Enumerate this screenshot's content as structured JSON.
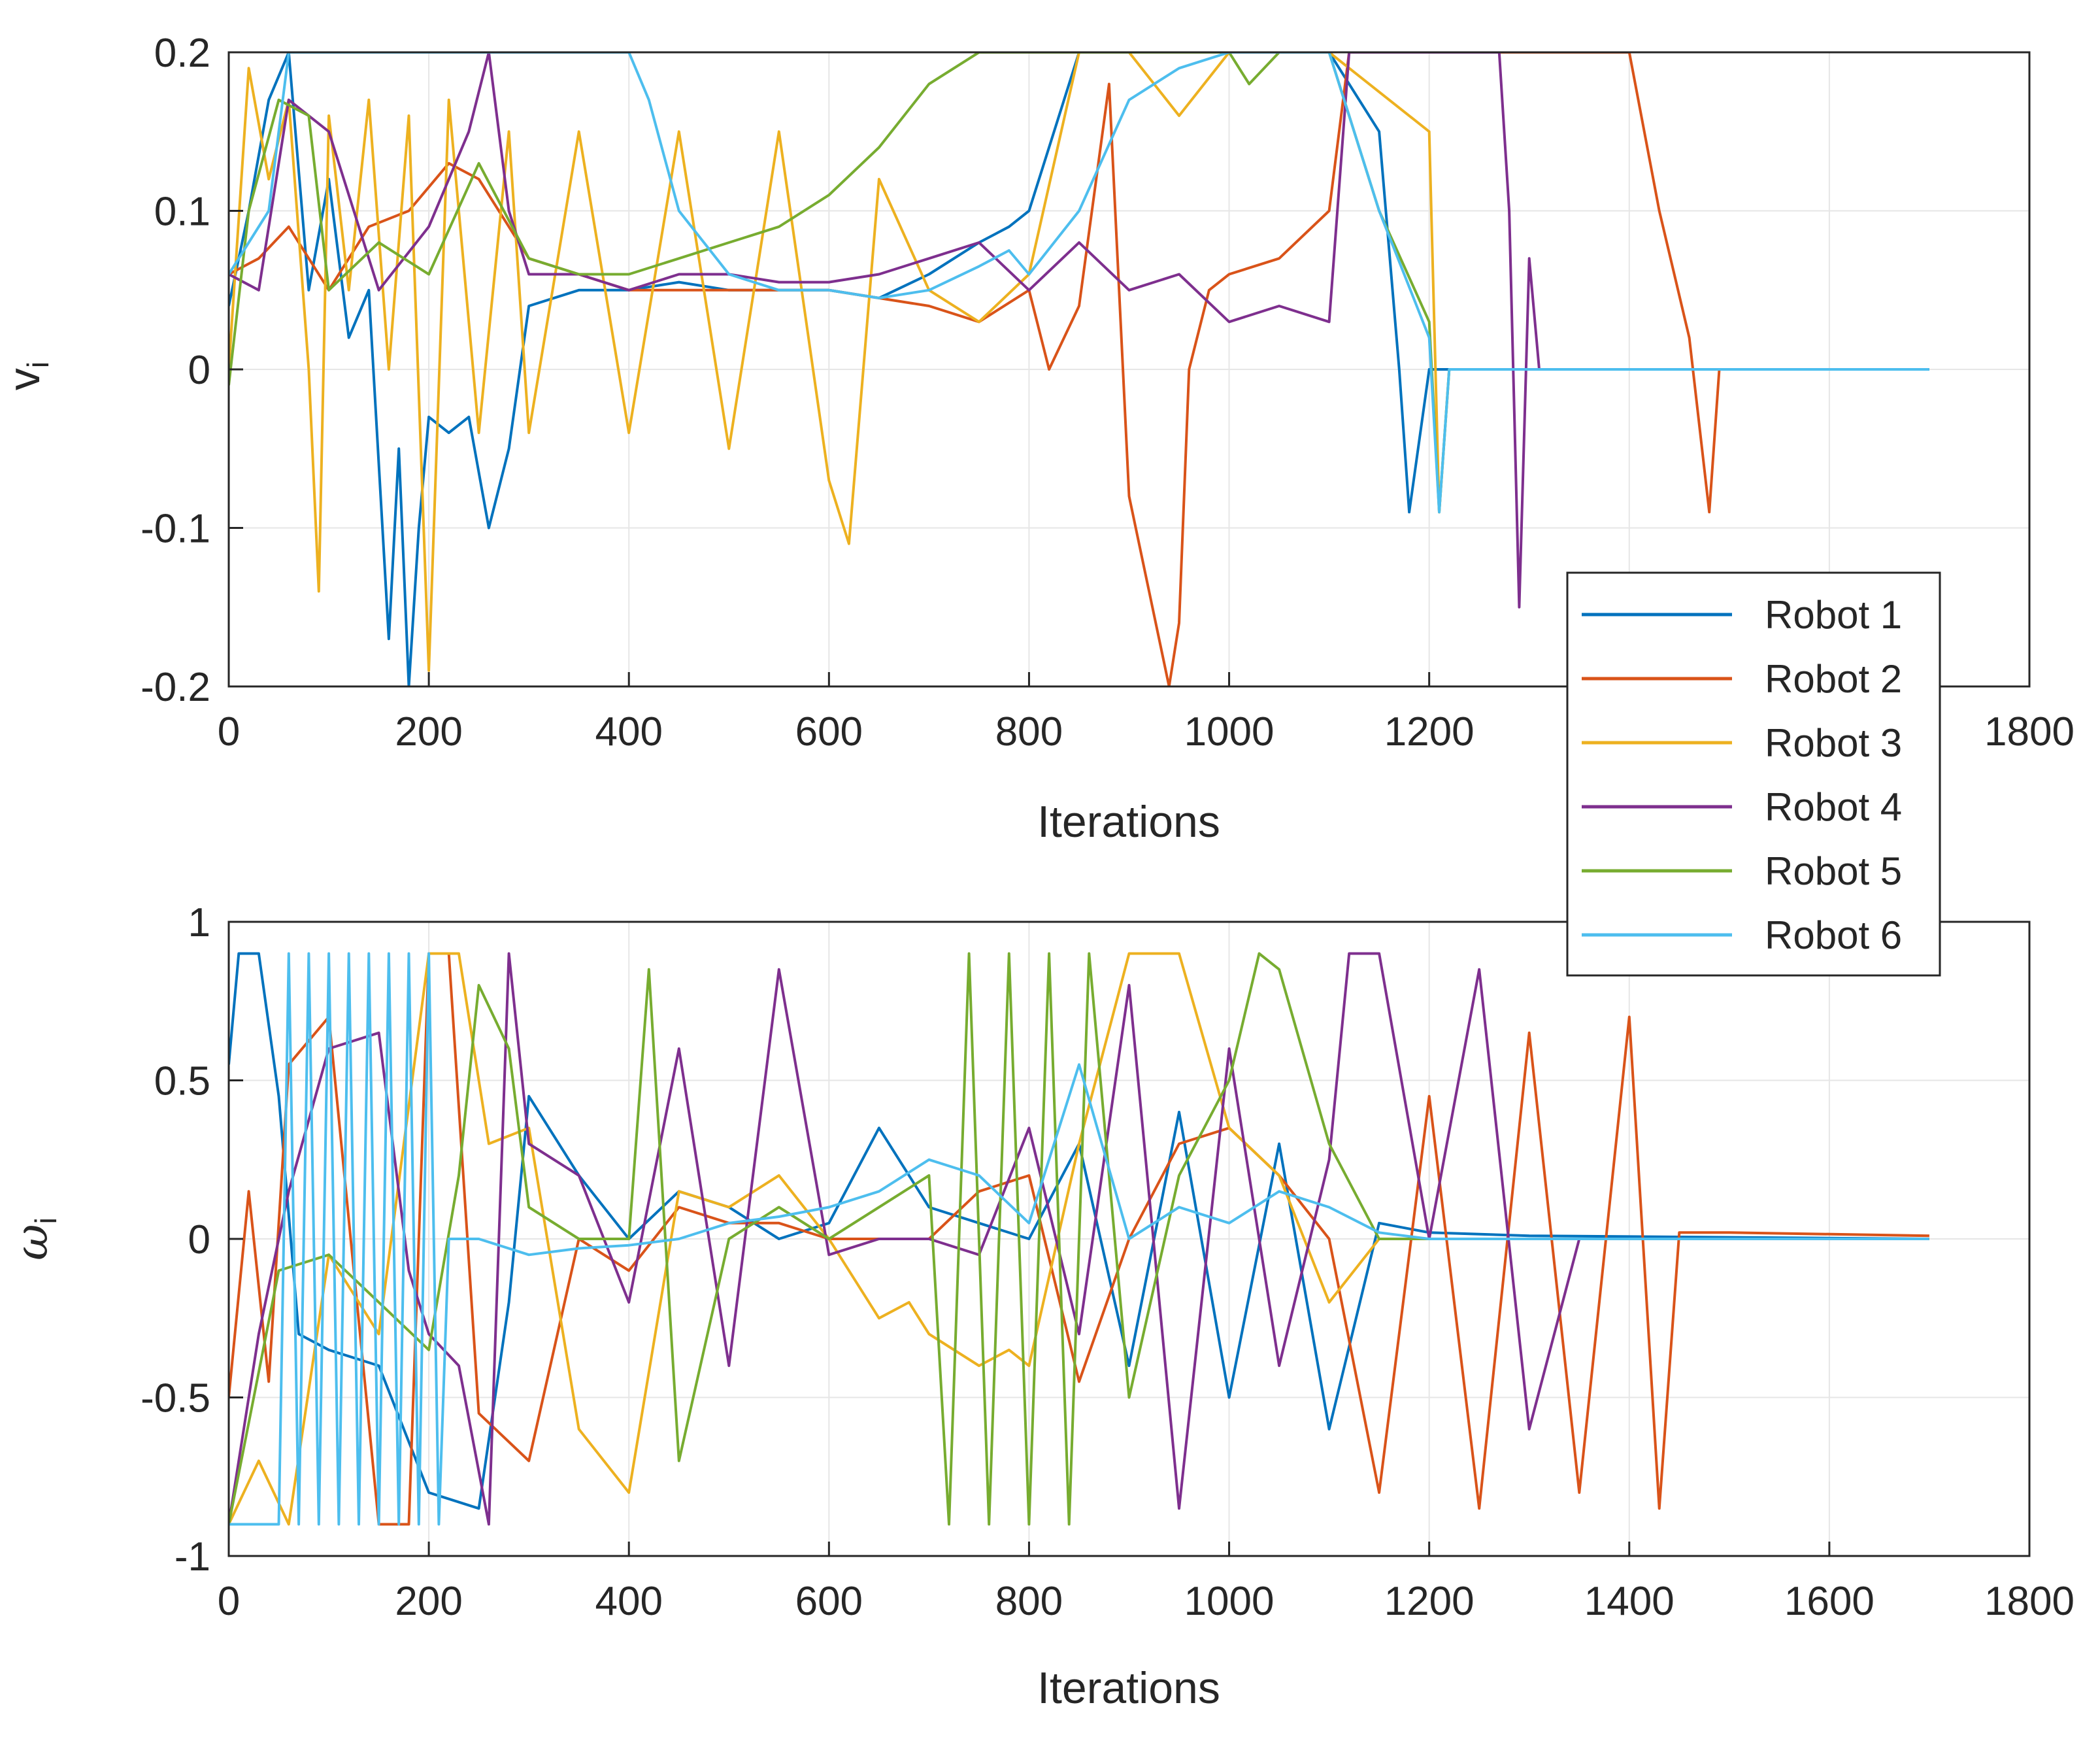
{
  "colors": {
    "series": [
      "#0072BD",
      "#D95319",
      "#EDB120",
      "#7E2F8E",
      "#77AC30",
      "#4DBEEE"
    ],
    "grid": "#e6e6e6",
    "axis": "#262626",
    "background": "#ffffff"
  },
  "legend": {
    "placement": "right, overlapping both panels",
    "entries": [
      "Robot 1",
      "Robot 2",
      "Robot 3",
      "Robot 4",
      "Robot 5",
      "Robot 6"
    ]
  },
  "chart_data": [
    {
      "type": "line",
      "title": "",
      "xlabel": "Iterations",
      "ylabel": "v",
      "ylabel_subscript": "i",
      "xlim": [
        0,
        1800
      ],
      "ylim": [
        -0.2,
        0.2
      ],
      "xticks": [
        0,
        200,
        400,
        600,
        800,
        1000,
        1200,
        1400,
        1600,
        1800
      ],
      "xtick_labels": [
        "0",
        "200",
        "400",
        "600",
        "800",
        "1000",
        "1200",
        "1400",
        "1600",
        "1800"
      ],
      "yticks": [
        -0.2,
        -0.1,
        0,
        0.1,
        0.2
      ],
      "ytick_labels": [
        "-0.2",
        "-0.1",
        "0",
        "0.1",
        "0.2"
      ],
      "grid": true,
      "series": [
        {
          "name": "Robot 1",
          "x": [
            0,
            20,
            40,
            60,
            80,
            100,
            120,
            140,
            160,
            170,
            180,
            190,
            200,
            220,
            240,
            260,
            280,
            300,
            350,
            400,
            450,
            500,
            550,
            600,
            650,
            700,
            750,
            780,
            800,
            850,
            900,
            950,
            1000,
            1050,
            1100,
            1150,
            1170,
            1180,
            1200,
            1400,
            1700
          ],
          "values": [
            0.04,
            0.1,
            0.17,
            0.2,
            0.05,
            0.12,
            0.02,
            0.05,
            -0.17,
            -0.05,
            -0.2,
            -0.1,
            -0.03,
            -0.04,
            -0.03,
            -0.1,
            -0.05,
            0.04,
            0.05,
            0.05,
            0.055,
            0.05,
            0.05,
            0.05,
            0.045,
            0.06,
            0.08,
            0.09,
            0.1,
            0.2,
            0.2,
            0.2,
            0.2,
            0.2,
            0.2,
            0.15,
            0.0,
            -0.09,
            0.0,
            0.0,
            0.0
          ]
        },
        {
          "name": "Robot 2",
          "x": [
            0,
            30,
            60,
            100,
            140,
            180,
            220,
            250,
            300,
            400,
            500,
            600,
            700,
            750,
            800,
            820,
            850,
            880,
            900,
            920,
            940,
            950,
            960,
            980,
            1000,
            1050,
            1100,
            1120,
            1140,
            1200,
            1300,
            1400,
            1430,
            1460,
            1480,
            1490
          ],
          "values": [
            0.06,
            0.07,
            0.09,
            0.05,
            0.09,
            0.1,
            0.13,
            0.12,
            0.07,
            0.05,
            0.05,
            0.05,
            0.04,
            0.03,
            0.05,
            0.0,
            0.04,
            0.18,
            -0.08,
            -0.14,
            -0.2,
            -0.16,
            0.0,
            0.05,
            0.06,
            0.07,
            0.1,
            0.2,
            0.2,
            0.2,
            0.2,
            0.2,
            0.1,
            0.02,
            -0.09,
            0.0
          ]
        },
        {
          "name": "Robot 3",
          "x": [
            0,
            20,
            40,
            60,
            80,
            90,
            100,
            120,
            140,
            160,
            180,
            200,
            220,
            250,
            280,
            300,
            350,
            400,
            450,
            500,
            550,
            600,
            620,
            650,
            700,
            750,
            800,
            850,
            900,
            950,
            1000,
            1100,
            1200,
            1210,
            1220
          ],
          "values": [
            0.0,
            0.19,
            0.12,
            0.17,
            0.0,
            -0.14,
            0.16,
            0.05,
            0.17,
            0.0,
            0.16,
            -0.19,
            0.17,
            -0.04,
            0.15,
            -0.04,
            0.15,
            -0.04,
            0.15,
            -0.05,
            0.15,
            -0.07,
            -0.11,
            0.12,
            0.05,
            0.03,
            0.06,
            0.2,
            0.2,
            0.16,
            0.2,
            0.2,
            0.15,
            -0.09,
            0.0
          ]
        },
        {
          "name": "Robot 4",
          "x": [
            0,
            30,
            60,
            100,
            150,
            200,
            240,
            260,
            280,
            300,
            350,
            400,
            450,
            500,
            550,
            600,
            650,
            700,
            750,
            800,
            850,
            900,
            950,
            1000,
            1050,
            1100,
            1120,
            1150,
            1200,
            1250,
            1270,
            1280,
            1290,
            1300,
            1310
          ],
          "values": [
            0.06,
            0.05,
            0.17,
            0.15,
            0.05,
            0.09,
            0.15,
            0.2,
            0.1,
            0.06,
            0.06,
            0.05,
            0.06,
            0.06,
            0.055,
            0.055,
            0.06,
            0.07,
            0.08,
            0.05,
            0.08,
            0.05,
            0.06,
            0.03,
            0.04,
            0.03,
            0.2,
            0.2,
            0.2,
            0.2,
            0.2,
            0.1,
            -0.15,
            0.07,
            0.0
          ]
        },
        {
          "name": "Robot 5",
          "x": [
            0,
            20,
            50,
            80,
            100,
            150,
            200,
            250,
            300,
            350,
            400,
            450,
            500,
            550,
            600,
            650,
            700,
            750,
            800,
            900,
            1000,
            1020,
            1050,
            1100,
            1150,
            1200,
            1210,
            1220
          ],
          "values": [
            -0.01,
            0.1,
            0.17,
            0.16,
            0.05,
            0.08,
            0.06,
            0.13,
            0.07,
            0.06,
            0.06,
            0.07,
            0.08,
            0.09,
            0.11,
            0.14,
            0.18,
            0.2,
            0.2,
            0.2,
            0.2,
            0.18,
            0.2,
            0.2,
            0.1,
            0.03,
            -0.09,
            0.0
          ]
        },
        {
          "name": "Robot 6",
          "x": [
            0,
            40,
            60,
            100,
            200,
            300,
            400,
            420,
            450,
            500,
            550,
            600,
            650,
            700,
            750,
            780,
            800,
            850,
            900,
            950,
            1000,
            1050,
            1100,
            1150,
            1200,
            1210,
            1220,
            1300,
            1400,
            1500,
            1600,
            1700
          ],
          "values": [
            0.06,
            0.1,
            0.2,
            0.2,
            0.2,
            0.2,
            0.2,
            0.17,
            0.1,
            0.06,
            0.05,
            0.05,
            0.045,
            0.05,
            0.065,
            0.075,
            0.06,
            0.1,
            0.17,
            0.19,
            0.2,
            0.2,
            0.2,
            0.1,
            0.02,
            -0.09,
            0.0,
            0.0,
            0.0,
            0.0,
            0.0,
            0.0
          ]
        }
      ]
    },
    {
      "type": "line",
      "title": "",
      "xlabel": "Iterations",
      "ylabel": "ω",
      "ylabel_subscript": "i",
      "xlim": [
        0,
        1800
      ],
      "ylim": [
        -1,
        1
      ],
      "xticks": [
        0,
        200,
        400,
        600,
        800,
        1000,
        1200,
        1400,
        1600,
        1800
      ],
      "xtick_labels": [
        "0",
        "200",
        "400",
        "600",
        "800",
        "1000",
        "1200",
        "1400",
        "1600",
        "1800"
      ],
      "yticks": [
        -1,
        -0.5,
        0,
        0.5,
        1
      ],
      "ytick_labels": [
        "-1",
        "-0.5",
        "0",
        "0.5",
        "1"
      ],
      "grid": true,
      "series": [
        {
          "name": "Robot 1",
          "x": [
            0,
            10,
            30,
            50,
            70,
            100,
            150,
            200,
            250,
            280,
            300,
            350,
            400,
            450,
            500,
            550,
            600,
            650,
            700,
            750,
            800,
            850,
            900,
            950,
            1000,
            1050,
            1100,
            1150,
            1200,
            1300,
            1700
          ],
          "values": [
            0.55,
            0.9,
            0.9,
            0.45,
            -0.3,
            -0.35,
            -0.4,
            -0.8,
            -0.85,
            -0.2,
            0.45,
            0.2,
            0.0,
            0.15,
            0.1,
            0.0,
            0.05,
            0.35,
            0.1,
            0.05,
            0.0,
            0.3,
            -0.4,
            0.4,
            -0.5,
            0.3,
            -0.6,
            0.05,
            0.02,
            0.01,
            0.0
          ]
        },
        {
          "name": "Robot 2",
          "x": [
            0,
            20,
            40,
            60,
            100,
            150,
            180,
            200,
            220,
            250,
            300,
            350,
            400,
            450,
            500,
            550,
            600,
            650,
            700,
            750,
            800,
            850,
            900,
            950,
            1000,
            1050,
            1100,
            1150,
            1200,
            1250,
            1300,
            1350,
            1400,
            1430,
            1450,
            1500,
            1700
          ],
          "values": [
            -0.5,
            0.15,
            -0.45,
            0.55,
            0.7,
            -0.9,
            -0.9,
            0.9,
            0.9,
            -0.55,
            -0.7,
            0.0,
            -0.1,
            0.1,
            0.05,
            0.05,
            0.0,
            0.0,
            0.0,
            0.15,
            0.2,
            -0.45,
            0.0,
            0.3,
            0.35,
            0.2,
            0.0,
            -0.8,
            0.45,
            -0.85,
            0.65,
            -0.8,
            0.7,
            -0.85,
            0.02,
            0.02,
            0.01
          ]
        },
        {
          "name": "Robot 3",
          "x": [
            0,
            30,
            60,
            100,
            150,
            200,
            230,
            260,
            300,
            350,
            400,
            450,
            500,
            550,
            600,
            650,
            680,
            700,
            750,
            780,
            800,
            850,
            900,
            950,
            1000,
            1050,
            1100,
            1150,
            1200,
            1700
          ],
          "values": [
            -0.9,
            -0.7,
            -0.9,
            -0.05,
            -0.3,
            0.9,
            0.9,
            0.3,
            0.35,
            -0.6,
            -0.8,
            0.15,
            0.1,
            0.2,
            0.0,
            -0.25,
            -0.2,
            -0.3,
            -0.4,
            -0.35,
            -0.4,
            0.3,
            0.9,
            0.9,
            0.35,
            0.2,
            -0.2,
            0.0,
            0.0,
            0.0
          ]
        },
        {
          "name": "Robot 4",
          "x": [
            0,
            30,
            60,
            100,
            150,
            180,
            200,
            230,
            260,
            280,
            300,
            350,
            400,
            450,
            500,
            550,
            600,
            650,
            700,
            750,
            800,
            850,
            900,
            950,
            1000,
            1050,
            1100,
            1120,
            1150,
            1200,
            1250,
            1300,
            1350,
            1700
          ],
          "values": [
            -0.9,
            -0.3,
            0.15,
            0.6,
            0.65,
            -0.1,
            -0.3,
            -0.4,
            -0.9,
            0.9,
            0.3,
            0.2,
            -0.2,
            0.6,
            -0.4,
            0.85,
            -0.05,
            0.0,
            0.0,
            -0.05,
            0.35,
            -0.3,
            0.8,
            -0.85,
            0.6,
            -0.4,
            0.25,
            0.9,
            0.9,
            0.0,
            0.85,
            -0.6,
            0.0,
            0.0
          ]
        },
        {
          "name": "Robot 5",
          "x": [
            0,
            50,
            100,
            150,
            200,
            230,
            250,
            280,
            300,
            350,
            400,
            420,
            450,
            500,
            550,
            600,
            650,
            700,
            720,
            740,
            760,
            780,
            800,
            820,
            840,
            860,
            900,
            950,
            1000,
            1030,
            1050,
            1100,
            1150,
            1200,
            1700
          ],
          "values": [
            -0.9,
            -0.1,
            -0.05,
            -0.2,
            -0.35,
            0.2,
            0.8,
            0.6,
            0.1,
            0.0,
            0.0,
            0.85,
            -0.7,
            0.0,
            0.1,
            0.0,
            0.1,
            0.2,
            -0.9,
            0.9,
            -0.9,
            0.9,
            -0.9,
            0.9,
            -0.9,
            0.9,
            -0.5,
            0.2,
            0.5,
            0.9,
            0.85,
            0.3,
            0.0,
            0.0,
            0.0
          ]
        },
        {
          "name": "Robot 6",
          "x": [
            0,
            50,
            60,
            70,
            80,
            90,
            100,
            110,
            120,
            130,
            140,
            150,
            160,
            170,
            180,
            190,
            200,
            210,
            220,
            250,
            300,
            350,
            400,
            450,
            500,
            550,
            600,
            650,
            700,
            750,
            800,
            850,
            900,
            950,
            1000,
            1050,
            1100,
            1150,
            1200,
            1300,
            1700
          ],
          "values": [
            -0.9,
            -0.9,
            0.9,
            -0.9,
            0.9,
            -0.9,
            0.9,
            -0.9,
            0.9,
            -0.9,
            0.9,
            -0.9,
            0.9,
            -0.9,
            0.9,
            -0.9,
            0.9,
            -0.9,
            0.0,
            0.0,
            -0.05,
            -0.03,
            -0.02,
            0.0,
            0.05,
            0.07,
            0.1,
            0.15,
            0.25,
            0.2,
            0.05,
            0.55,
            0.0,
            0.1,
            0.05,
            0.15,
            0.1,
            0.02,
            0.0,
            0.0,
            0.0
          ]
        }
      ]
    }
  ]
}
